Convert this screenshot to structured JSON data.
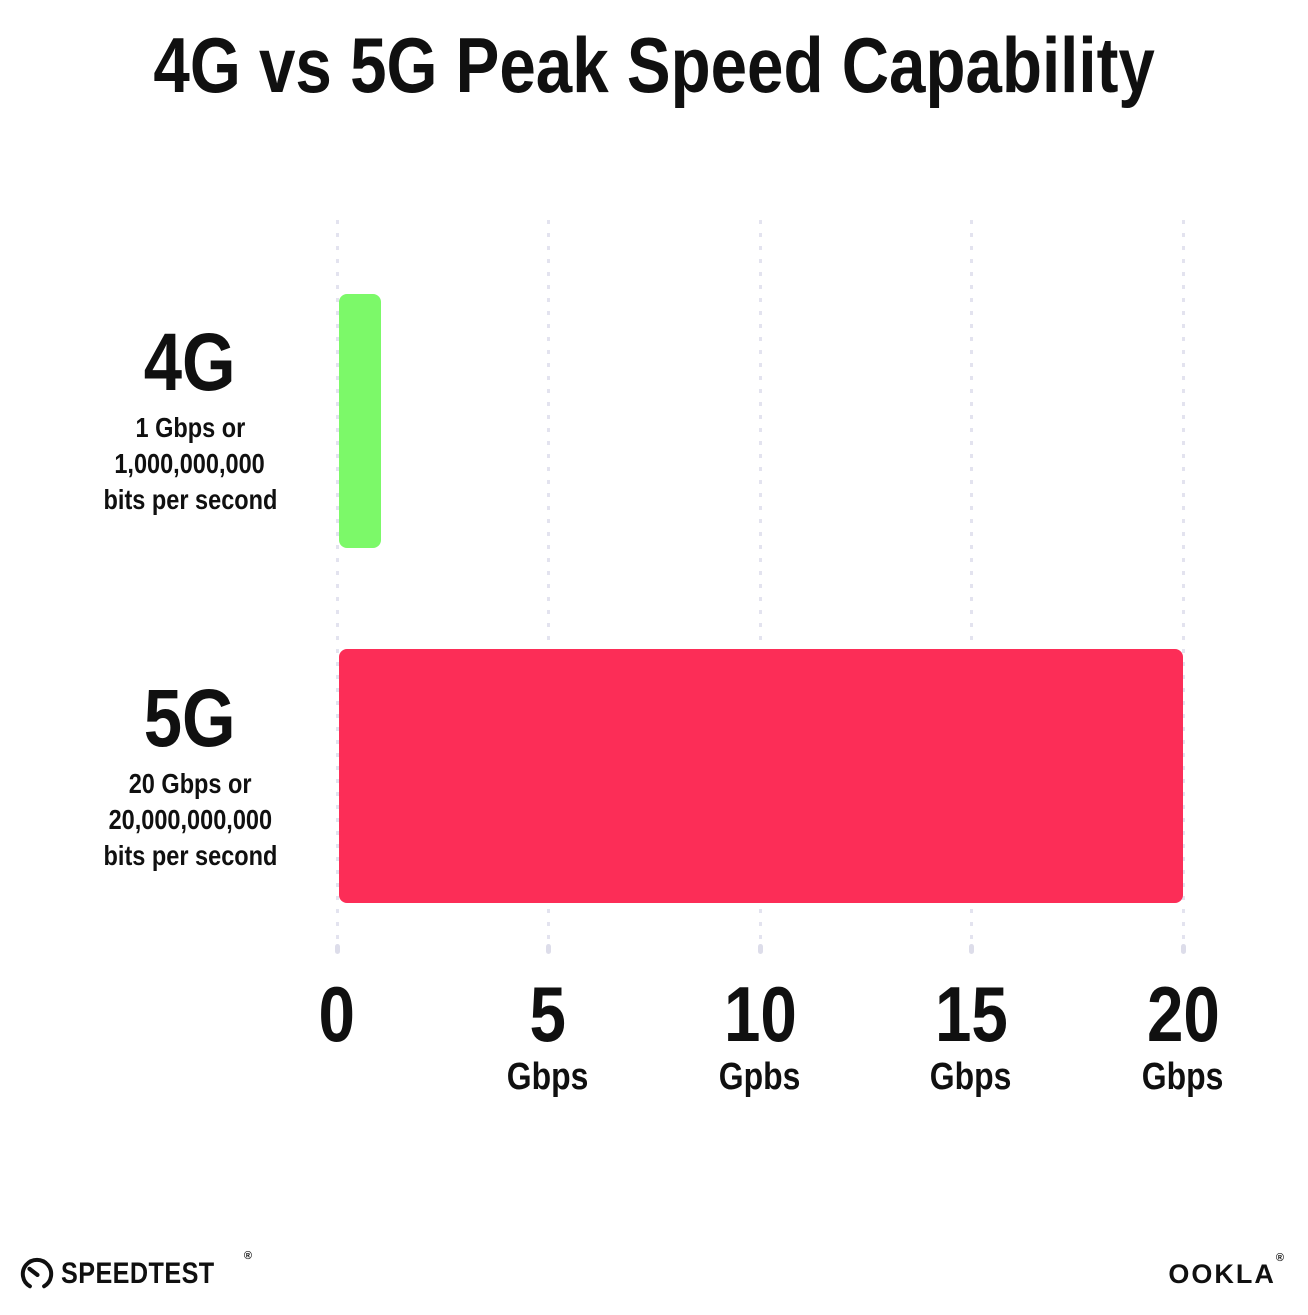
{
  "title": "4G vs 5G Peak Speed Capability",
  "chart_data": {
    "type": "bar",
    "orientation": "horizontal",
    "title": "4G vs 5G Peak Speed Capability",
    "categories": [
      "4G",
      "5G"
    ],
    "values": [
      1,
      20
    ],
    "unit": "Gbps",
    "xlim": [
      0,
      20
    ],
    "xtick_step": 5,
    "grid": "dotted-vertical",
    "gridline_color": "#E3E3EF",
    "background_color": "#FFFFFF",
    "text_color": "#101010",
    "bars": [
      {
        "label": "4G",
        "value": 1,
        "color": "#7CF969",
        "sublabel_lines": [
          "1 Gbps or",
          "1,000,000,000",
          "bits per second"
        ]
      },
      {
        "label": "5G",
        "value": 20,
        "color": "#FC2D57",
        "sublabel_lines": [
          "20 Gbps or",
          "20,000,000,000",
          "bits per second"
        ]
      }
    ],
    "xticks": [
      {
        "value": "0",
        "unit": ""
      },
      {
        "value": "5",
        "unit": "Gbps"
      },
      {
        "value": "10",
        "unit": "Gpbs"
      },
      {
        "value": "15",
        "unit": "Gbps"
      },
      {
        "value": "20",
        "unit": "Gbps"
      }
    ]
  },
  "footer": {
    "speedtest_label": "SPEEDTEST",
    "speedtest_reg": "®",
    "ookla_label": "OOKLA",
    "ookla_reg": "®",
    "speedtest_icon": "gauge-icon"
  }
}
